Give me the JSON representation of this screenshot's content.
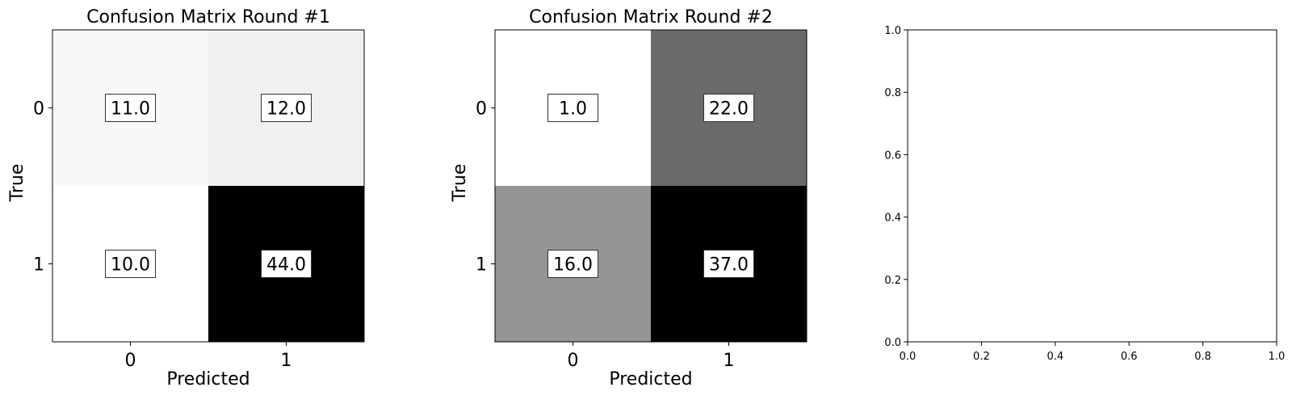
{
  "chart_data": [
    {
      "type": "heatmap",
      "title": "Confusion Matrix Round #1",
      "xlabel": "Predicted",
      "ylabel": "True",
      "x_categories": [
        "0",
        "1"
      ],
      "y_categories": [
        "0",
        "1"
      ],
      "values": [
        [
          11.0,
          12.0
        ],
        [
          10.0,
          44.0
        ]
      ],
      "value_labels": [
        [
          "11.0",
          "12.0"
        ],
        [
          "10.0",
          "44.0"
        ]
      ],
      "colormap": "greys"
    },
    {
      "type": "heatmap",
      "title": "Confusion Matrix Round #2",
      "xlabel": "Predicted",
      "ylabel": "True",
      "x_categories": [
        "0",
        "1"
      ],
      "y_categories": [
        "0",
        "1"
      ],
      "values": [
        [
          1.0,
          22.0
        ],
        [
          16.0,
          37.0
        ]
      ],
      "value_labels": [
        [
          "1.0",
          "22.0"
        ],
        [
          "16.0",
          "37.0"
        ]
      ],
      "colormap": "greys"
    },
    {
      "type": "line",
      "title": "",
      "xlabel": "",
      "ylabel": "",
      "xlim": [
        0.0,
        1.0
      ],
      "ylim": [
        0.0,
        1.0
      ],
      "x_ticks": [
        "0.0",
        "0.2",
        "0.4",
        "0.6",
        "0.8",
        "1.0"
      ],
      "y_ticks": [
        "0.0",
        "0.2",
        "0.4",
        "0.6",
        "0.8",
        "1.0"
      ],
      "series": []
    }
  ]
}
